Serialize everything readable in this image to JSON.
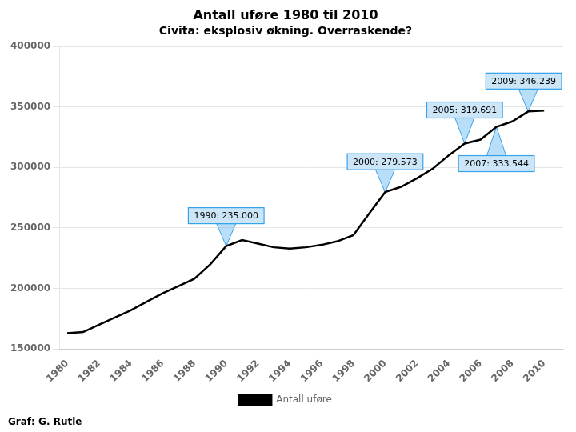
{
  "chart_data": {
    "type": "line",
    "title": "Antall uføre 1980 til 2010",
    "subtitle": "Civita: eksplosiv økning. Overraskende?",
    "x": [
      1980,
      1981,
      1982,
      1983,
      1984,
      1985,
      1986,
      1987,
      1988,
      1989,
      1990,
      1991,
      1992,
      1993,
      1994,
      1995,
      1996,
      1997,
      1998,
      1999,
      2000,
      2001,
      2002,
      2003,
      2004,
      2005,
      2006,
      2007,
      2008,
      2009,
      2010
    ],
    "series": [
      {
        "name": "Antall uføre",
        "color": "#000000",
        "values": [
          163000,
          164000,
          170000,
          176000,
          182000,
          189000,
          196000,
          202000,
          208000,
          220000,
          235000,
          240000,
          237000,
          234000,
          233000,
          234000,
          236000,
          239000,
          244000,
          262000,
          279573,
          284000,
          291000,
          299000,
          310000,
          319691,
          323000,
          333544,
          338000,
          346239,
          347000
        ]
      }
    ],
    "xlim": [
      1979.5,
      2011.2
    ],
    "xticks": [
      1980,
      1982,
      1984,
      1986,
      1988,
      1990,
      1992,
      1994,
      1996,
      1998,
      2000,
      2002,
      2004,
      2006,
      2008,
      2010
    ],
    "ylim": [
      150000,
      400000
    ],
    "yticks": [
      150000,
      200000,
      250000,
      300000,
      350000,
      400000
    ],
    "grid": "y",
    "legend": "bottom",
    "annotations": [
      {
        "x": 1990,
        "y": 235000,
        "label": "1990: 235.000"
      },
      {
        "x": 2000,
        "y": 279573,
        "label": "2000: 279.573"
      },
      {
        "x": 2005,
        "y": 319691,
        "label": "2005: 319.691"
      },
      {
        "x": 2007,
        "y": 333544,
        "label": "2007: 333.544"
      },
      {
        "x": 2009,
        "y": 346239,
        "label": "2009: 346.239"
      }
    ],
    "footer": "Graf: G. Rutle"
  }
}
